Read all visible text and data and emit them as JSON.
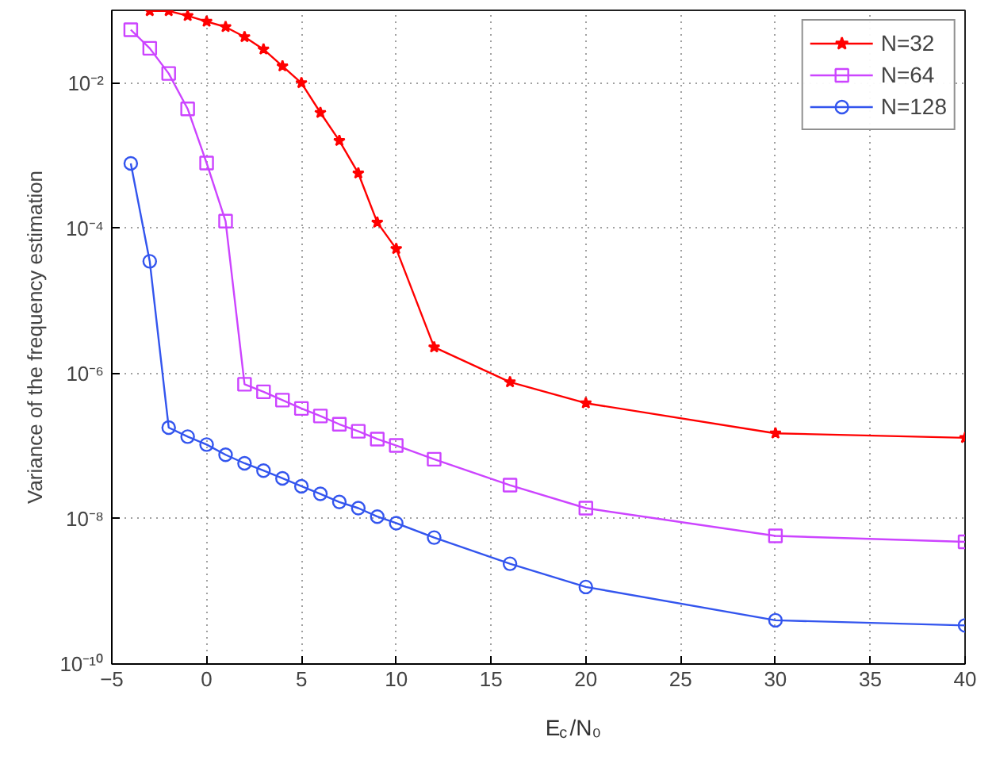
{
  "chart_data": {
    "type": "line",
    "xlabel": "E$_{c}$/N₀",
    "ylabel": "Variance of the frequency estimation",
    "log": "y",
    "xlim": [
      -5,
      40
    ],
    "xticks": [
      -5,
      0,
      5,
      10,
      15,
      20,
      25,
      30,
      35,
      40
    ],
    "ylim": [
      1e-10,
      0.1
    ],
    "yticks": [
      {
        "value": 1e-10,
        "label": "10⁻¹⁰"
      },
      {
        "value": 1e-08,
        "label": "10⁻⁸"
      },
      {
        "value": 1e-06,
        "label": "10⁻⁶"
      },
      {
        "value": 0.0001,
        "label": "10⁻⁴"
      },
      {
        "value": 0.01,
        "label": "10⁻²"
      }
    ],
    "grid": true,
    "legend": "top right",
    "line_style": "solid",
    "series": [
      {
        "name": "N=32",
        "color": "#ff0000",
        "marker": "star",
        "x": [
          -3,
          -2,
          -1,
          0,
          1,
          2,
          3,
          4,
          5,
          6,
          7,
          8,
          9,
          10,
          12,
          16,
          20,
          30,
          40
        ],
        "values": [
          0.098,
          0.098,
          0.084,
          0.07,
          0.059,
          0.043,
          0.029,
          0.017,
          0.01,
          0.0039,
          0.0016,
          0.00057,
          0.00012,
          5.2e-05,
          2.3e-06,
          7.6e-07,
          3.9e-07,
          1.5e-07,
          1.3e-07
        ]
      },
      {
        "name": "N=64",
        "color": "#cc44ff",
        "marker": "square",
        "x": [
          -4,
          -3,
          -2,
          -1,
          0,
          1,
          2,
          3,
          4,
          5,
          6,
          7,
          8,
          9,
          10,
          12,
          16,
          20,
          30,
          40
        ],
        "values": [
          0.054,
          0.03,
          0.0135,
          0.0044,
          0.00079,
          0.000125,
          7.1e-07,
          5.6e-07,
          4.3e-07,
          3.3e-07,
          2.6e-07,
          2e-07,
          1.6e-07,
          1.25e-07,
          1.02e-07,
          6.6e-08,
          2.9e-08,
          1.4e-08,
          5.8e-09,
          4.8e-09
        ]
      },
      {
        "name": "N=128",
        "color": "#3355ee",
        "marker": "circle",
        "x": [
          -4,
          -3,
          -2,
          -1,
          0,
          1,
          2,
          3,
          4,
          5,
          6,
          7,
          8,
          9,
          10,
          12,
          16,
          20,
          30,
          40
        ],
        "values": [
          0.00078,
          3.5e-05,
          1.8e-07,
          1.35e-07,
          1.05e-07,
          7.6e-08,
          5.8e-08,
          4.6e-08,
          3.6e-08,
          2.8e-08,
          2.2e-08,
          1.7e-08,
          1.4e-08,
          1.07e-08,
          8.7e-09,
          5.5e-09,
          2.4e-09,
          1.15e-09,
          4e-10,
          3.4e-10
        ]
      }
    ]
  }
}
